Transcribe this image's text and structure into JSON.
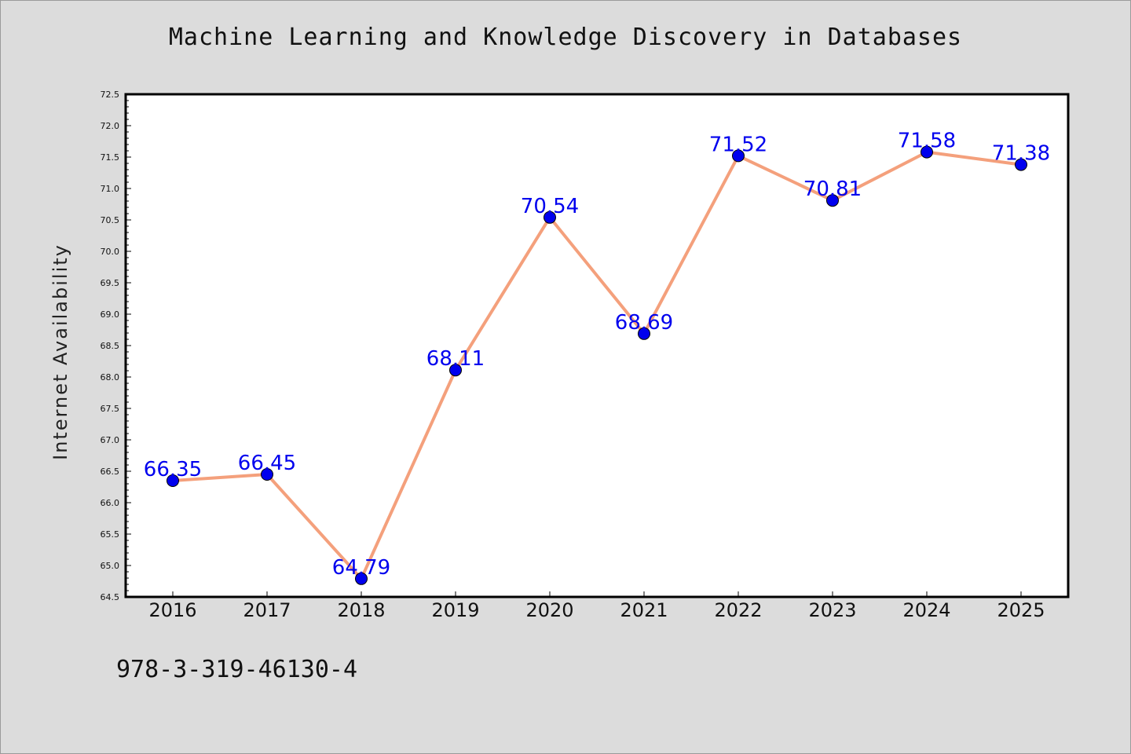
{
  "chart_data": {
    "type": "line",
    "title": "Machine Learning and Knowledge Discovery in Databases",
    "xlabel": "",
    "ylabel": "Internet Availability",
    "categories": [
      "2016",
      "2017",
      "2018",
      "2019",
      "2020",
      "2021",
      "2022",
      "2023",
      "2024",
      "2025"
    ],
    "series": [
      {
        "values": [
          66.35,
          66.45,
          64.79,
          68.11,
          70.54,
          68.69,
          71.52,
          70.81,
          71.58,
          71.38
        ],
        "labels": [
          "66.35",
          "66.45",
          "64.79",
          "68.11",
          "70.54",
          "68.69",
          "71.52",
          "70.81",
          "71.58",
          "71.38"
        ],
        "line_color": "#f4a07c",
        "marker_color": "#0000ee",
        "label_color": "#0000ee"
      }
    ],
    "ylim": [
      64.5,
      72.5
    ],
    "yticks": [
      "64.5",
      "65.0",
      "65.5",
      "66.0",
      "66.5",
      "67.0",
      "67.5",
      "68.0",
      "68.5",
      "69.0",
      "69.5",
      "70.0",
      "70.5",
      "71.0",
      "71.5",
      "72.0",
      "72.5"
    ],
    "grid": false,
    "legend": "none"
  },
  "note": "978-3-319-46130-4",
  "colors": {
    "background": "#dcdcdc",
    "plot_area": "#ffffff",
    "axes": "#000000"
  }
}
